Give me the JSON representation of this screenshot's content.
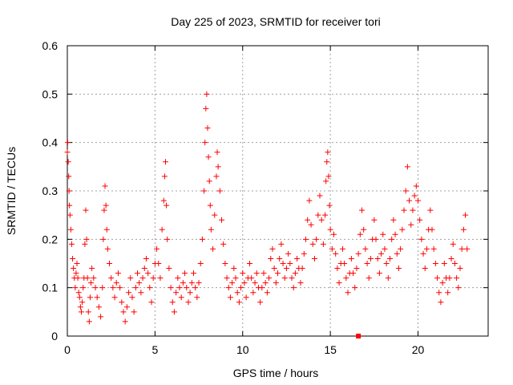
{
  "chart_data": {
    "type": "scatter",
    "title": "Day 225 of 2023, SRMTID for receiver tori",
    "xlabel": "GPS time / hours",
    "ylabel": "SRMTID / TECUs",
    "xlim": [
      0,
      24
    ],
    "ylim": [
      0,
      0.6
    ],
    "xticks": [
      0,
      5,
      10,
      15,
      20
    ],
    "xtick_labels": [
      "0",
      "5",
      "10",
      "15",
      "20"
    ],
    "yticks": [
      0,
      0.1,
      0.2,
      0.3,
      0.4,
      0.5,
      0.6
    ],
    "ytick_labels": [
      "0",
      "0.1",
      "0.2",
      "0.3",
      "0.4",
      "0.5",
      "0.6"
    ],
    "grid": true,
    "marker": "+",
    "color": "#ff0000",
    "series": [
      {
        "name": "SRMTID",
        "points": [
          [
            0.0,
            0.38
          ],
          [
            0.02,
            0.4
          ],
          [
            0.05,
            0.36
          ],
          [
            0.08,
            0.33
          ],
          [
            0.1,
            0.3
          ],
          [
            0.12,
            0.27
          ],
          [
            0.15,
            0.25
          ],
          [
            0.2,
            0.22
          ],
          [
            0.25,
            0.19
          ],
          [
            0.3,
            0.16
          ],
          [
            0.35,
            0.14
          ],
          [
            0.4,
            0.12
          ],
          [
            0.45,
            0.1
          ],
          [
            0.5,
            0.13
          ],
          [
            0.55,
            0.15
          ],
          [
            0.6,
            0.12
          ],
          [
            0.65,
            0.09
          ],
          [
            0.7,
            0.08
          ],
          [
            0.75,
            0.06
          ],
          [
            0.8,
            0.05
          ],
          [
            0.85,
            0.07
          ],
          [
            0.9,
            0.1
          ],
          [
            0.95,
            0.12
          ],
          [
            1.0,
            0.19
          ],
          [
            1.05,
            0.26
          ],
          [
            1.1,
            0.2
          ],
          [
            1.15,
            0.12
          ],
          [
            1.2,
            0.05
          ],
          [
            1.25,
            0.03
          ],
          [
            1.3,
            0.08
          ],
          [
            1.35,
            0.11
          ],
          [
            1.4,
            0.14
          ],
          [
            1.5,
            0.12
          ],
          [
            1.6,
            0.1
          ],
          [
            1.7,
            0.08
          ],
          [
            1.8,
            0.06
          ],
          [
            1.9,
            0.04
          ],
          [
            2.0,
            0.1
          ],
          [
            2.05,
            0.2
          ],
          [
            2.1,
            0.26
          ],
          [
            2.15,
            0.31
          ],
          [
            2.2,
            0.27
          ],
          [
            2.25,
            0.22
          ],
          [
            2.3,
            0.18
          ],
          [
            2.4,
            0.15
          ],
          [
            2.5,
            0.12
          ],
          [
            2.6,
            0.1
          ],
          [
            2.7,
            0.08
          ],
          [
            2.8,
            0.11
          ],
          [
            2.9,
            0.13
          ],
          [
            3.0,
            0.1
          ],
          [
            3.1,
            0.07
          ],
          [
            3.2,
            0.05
          ],
          [
            3.3,
            0.03
          ],
          [
            3.4,
            0.06
          ],
          [
            3.5,
            0.09
          ],
          [
            3.6,
            0.12
          ],
          [
            3.7,
            0.08
          ],
          [
            3.8,
            0.05
          ],
          [
            3.9,
            0.1
          ],
          [
            4.0,
            0.13
          ],
          [
            4.1,
            0.11
          ],
          [
            4.2,
            0.09
          ],
          [
            4.3,
            0.12
          ],
          [
            4.4,
            0.14
          ],
          [
            4.5,
            0.16
          ],
          [
            4.6,
            0.13
          ],
          [
            4.7,
            0.1
          ],
          [
            4.8,
            0.07
          ],
          [
            4.9,
            0.12
          ],
          [
            5.0,
            0.15
          ],
          [
            5.1,
            0.18
          ],
          [
            5.2,
            0.15
          ],
          [
            5.3,
            0.12
          ],
          [
            5.4,
            0.22
          ],
          [
            5.5,
            0.28
          ],
          [
            5.55,
            0.33
          ],
          [
            5.6,
            0.36
          ],
          [
            5.65,
            0.27
          ],
          [
            5.7,
            0.2
          ],
          [
            5.8,
            0.14
          ],
          [
            5.9,
            0.1
          ],
          [
            6.0,
            0.07
          ],
          [
            6.1,
            0.05
          ],
          [
            6.2,
            0.09
          ],
          [
            6.3,
            0.12
          ],
          [
            6.4,
            0.1
          ],
          [
            6.5,
            0.08
          ],
          [
            6.6,
            0.11
          ],
          [
            6.7,
            0.13
          ],
          [
            6.8,
            0.1
          ],
          [
            6.9,
            0.07
          ],
          [
            7.0,
            0.09
          ],
          [
            7.1,
            0.11
          ],
          [
            7.2,
            0.13
          ],
          [
            7.3,
            0.1
          ],
          [
            7.4,
            0.08
          ],
          [
            7.5,
            0.11
          ],
          [
            7.6,
            0.15
          ],
          [
            7.7,
            0.2
          ],
          [
            7.8,
            0.3
          ],
          [
            7.85,
            0.4
          ],
          [
            7.9,
            0.47
          ],
          [
            7.95,
            0.5
          ],
          [
            8.0,
            0.43
          ],
          [
            8.05,
            0.37
          ],
          [
            8.1,
            0.32
          ],
          [
            8.15,
            0.27
          ],
          [
            8.2,
            0.22
          ],
          [
            8.3,
            0.18
          ],
          [
            8.4,
            0.25
          ],
          [
            8.5,
            0.33
          ],
          [
            8.55,
            0.38
          ],
          [
            8.6,
            0.35
          ],
          [
            8.7,
            0.3
          ],
          [
            8.8,
            0.24
          ],
          [
            8.9,
            0.19
          ],
          [
            9.0,
            0.15
          ],
          [
            9.1,
            0.12
          ],
          [
            9.2,
            0.1
          ],
          [
            9.3,
            0.08
          ],
          [
            9.4,
            0.11
          ],
          [
            9.5,
            0.14
          ],
          [
            9.6,
            0.12
          ],
          [
            9.7,
            0.09
          ],
          [
            9.8,
            0.07
          ],
          [
            9.9,
            0.1
          ],
          [
            10.0,
            0.13
          ],
          [
            10.1,
            0.11
          ],
          [
            10.2,
            0.08
          ],
          [
            10.3,
            0.12
          ],
          [
            10.4,
            0.15
          ],
          [
            10.5,
            0.12
          ],
          [
            10.6,
            0.09
          ],
          [
            10.7,
            0.11
          ],
          [
            10.8,
            0.13
          ],
          [
            10.9,
            0.1
          ],
          [
            11.0,
            0.07
          ],
          [
            11.1,
            0.1
          ],
          [
            11.2,
            0.13
          ],
          [
            11.3,
            0.11
          ],
          [
            11.4,
            0.09
          ],
          [
            11.5,
            0.12
          ],
          [
            11.6,
            0.16
          ],
          [
            11.7,
            0.18
          ],
          [
            11.8,
            0.14
          ],
          [
            11.9,
            0.11
          ],
          [
            12.0,
            0.13
          ],
          [
            12.1,
            0.16
          ],
          [
            12.2,
            0.19
          ],
          [
            12.3,
            0.15
          ],
          [
            12.4,
            0.12
          ],
          [
            12.5,
            0.14
          ],
          [
            12.6,
            0.17
          ],
          [
            12.7,
            0.15
          ],
          [
            12.8,
            0.12
          ],
          [
            12.9,
            0.1
          ],
          [
            13.0,
            0.13
          ],
          [
            13.1,
            0.16
          ],
          [
            13.2,
            0.14
          ],
          [
            13.3,
            0.11
          ],
          [
            13.4,
            0.14
          ],
          [
            13.5,
            0.17
          ],
          [
            13.6,
            0.2
          ],
          [
            13.7,
            0.24
          ],
          [
            13.8,
            0.28
          ],
          [
            13.9,
            0.23
          ],
          [
            14.0,
            0.19
          ],
          [
            14.1,
            0.16
          ],
          [
            14.2,
            0.2
          ],
          [
            14.3,
            0.25
          ],
          [
            14.4,
            0.29
          ],
          [
            14.5,
            0.24
          ],
          [
            14.6,
            0.19
          ],
          [
            14.7,
            0.25
          ],
          [
            14.75,
            0.32
          ],
          [
            14.8,
            0.36
          ],
          [
            14.85,
            0.38
          ],
          [
            14.9,
            0.33
          ],
          [
            14.95,
            0.27
          ],
          [
            15.0,
            0.22
          ],
          [
            15.1,
            0.18
          ],
          [
            15.2,
            0.21
          ],
          [
            15.3,
            0.17
          ],
          [
            15.4,
            0.14
          ],
          [
            15.5,
            0.11
          ],
          [
            15.6,
            0.15
          ],
          [
            15.7,
            0.18
          ],
          [
            15.8,
            0.15
          ],
          [
            15.9,
            0.12
          ],
          [
            16.0,
            0.09
          ],
          [
            16.1,
            0.13
          ],
          [
            16.2,
            0.16
          ],
          [
            16.3,
            0.13
          ],
          [
            16.4,
            0.1
          ],
          [
            16.5,
            0.14
          ],
          [
            16.6,
            0.17
          ],
          [
            16.7,
            0.21
          ],
          [
            16.8,
            0.26
          ],
          [
            16.9,
            0.22
          ],
          [
            17.0,
            0.18
          ],
          [
            17.1,
            0.15
          ],
          [
            17.2,
            0.12
          ],
          [
            17.3,
            0.16
          ],
          [
            17.4,
            0.2
          ],
          [
            17.5,
            0.24
          ],
          [
            17.6,
            0.2
          ],
          [
            17.7,
            0.16
          ],
          [
            17.8,
            0.13
          ],
          [
            17.9,
            0.17
          ],
          [
            18.0,
            0.21
          ],
          [
            18.1,
            0.18
          ],
          [
            18.2,
            0.15
          ],
          [
            18.3,
            0.12
          ],
          [
            18.4,
            0.16
          ],
          [
            18.5,
            0.2
          ],
          [
            18.6,
            0.24
          ],
          [
            18.7,
            0.21
          ],
          [
            18.8,
            0.17
          ],
          [
            18.9,
            0.14
          ],
          [
            19.0,
            0.18
          ],
          [
            19.1,
            0.22
          ],
          [
            19.2,
            0.26
          ],
          [
            19.3,
            0.3
          ],
          [
            19.4,
            0.35
          ],
          [
            19.5,
            0.28
          ],
          [
            19.6,
            0.23
          ],
          [
            19.7,
            0.26
          ],
          [
            19.8,
            0.29
          ],
          [
            19.9,
            0.31
          ],
          [
            20.0,
            0.28
          ],
          [
            20.1,
            0.24
          ],
          [
            20.2,
            0.2
          ],
          [
            20.3,
            0.17
          ],
          [
            20.4,
            0.14
          ],
          [
            20.5,
            0.18
          ],
          [
            20.6,
            0.22
          ],
          [
            20.7,
            0.26
          ],
          [
            20.8,
            0.22
          ],
          [
            20.9,
            0.18
          ],
          [
            21.0,
            0.15
          ],
          [
            21.1,
            0.12
          ],
          [
            21.2,
            0.09
          ],
          [
            21.3,
            0.07
          ],
          [
            21.4,
            0.11
          ],
          [
            21.5,
            0.15
          ],
          [
            21.6,
            0.12
          ],
          [
            21.7,
            0.09
          ],
          [
            21.8,
            0.12
          ],
          [
            21.9,
            0.16
          ],
          [
            22.0,
            0.19
          ],
          [
            22.1,
            0.15
          ],
          [
            22.2,
            0.12
          ],
          [
            22.3,
            0.1
          ],
          [
            22.4,
            0.14
          ],
          [
            22.5,
            0.18
          ],
          [
            22.6,
            0.22
          ],
          [
            22.7,
            0.25
          ],
          [
            22.8,
            0.18
          ]
        ]
      }
    ],
    "extra_marker": {
      "label": "marker",
      "x": 16.6,
      "y": 0.0,
      "shape": "filled-square"
    }
  }
}
